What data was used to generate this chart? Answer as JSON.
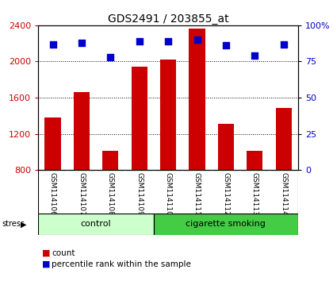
{
  "title": "GDS2491 / 203855_at",
  "samples": [
    "GSM114106",
    "GSM114107",
    "GSM114108",
    "GSM114109",
    "GSM114110",
    "GSM114111",
    "GSM114112",
    "GSM114113",
    "GSM114114"
  ],
  "counts": [
    1380,
    1660,
    1010,
    1940,
    2020,
    2360,
    1310,
    1010,
    1490
  ],
  "percentile_ranks": [
    87,
    88,
    78,
    89,
    89,
    90,
    86,
    79,
    87
  ],
  "ylim_left": [
    800,
    2400
  ],
  "ylim_right": [
    0,
    100
  ],
  "yticks_left": [
    800,
    1200,
    1600,
    2000,
    2400
  ],
  "yticks_right": [
    0,
    25,
    50,
    75,
    100
  ],
  "bar_color": "#cc0000",
  "dot_color": "#0000cc",
  "group_labels": [
    "control",
    "cigarette smoking"
  ],
  "n_control": 4,
  "n_smoking": 5,
  "group_color_light": "#ccffcc",
  "group_color_dark": "#44cc44",
  "label_bg_color": "#c8c8c8",
  "stress_label": "stress",
  "legend_items": [
    "count",
    "percentile rank within the sample"
  ],
  "background_color": "#ffffff",
  "count_baseline": 800,
  "figsize": [
    4.2,
    3.54
  ],
  "dpi": 100
}
